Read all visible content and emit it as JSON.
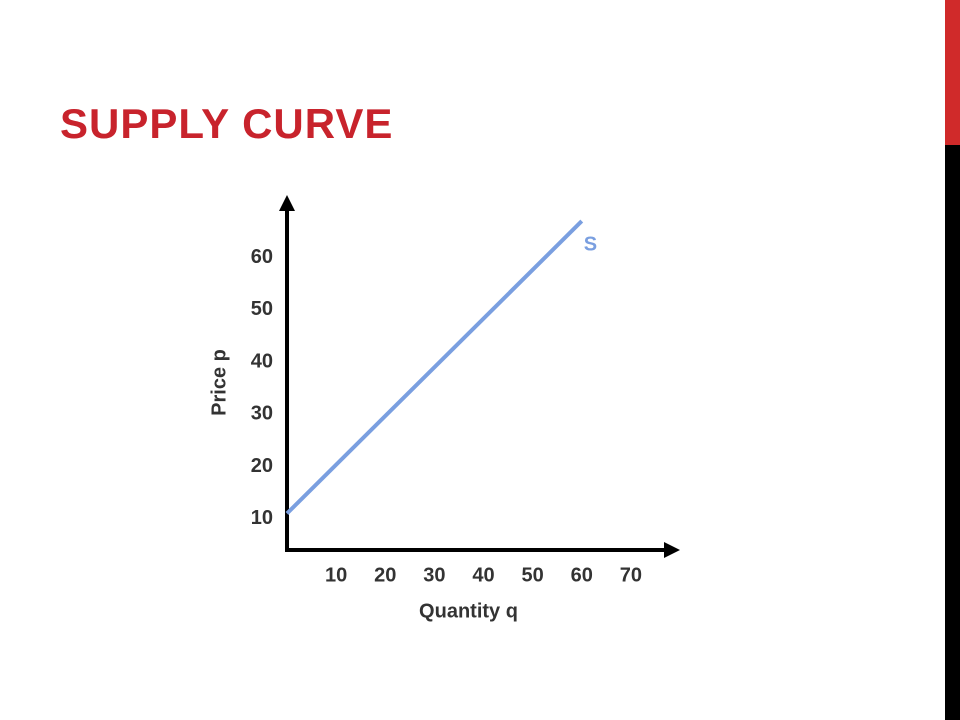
{
  "slide": {
    "title": "SUPPLY CURVE"
  },
  "chart_data": {
    "type": "line",
    "x_label": "Quantity q",
    "y_label": "Price p",
    "xlim": [
      0,
      80
    ],
    "ylim": [
      4,
      72
    ],
    "xticks": [
      10,
      20,
      30,
      40,
      50,
      60,
      70
    ],
    "yticks": [
      10,
      20,
      30,
      40,
      50,
      60
    ],
    "grid": false,
    "series": [
      {
        "name": "S",
        "color": "#7a9fe0",
        "x": [
          0,
          60
        ],
        "values": [
          11,
          67
        ]
      }
    ]
  }
}
